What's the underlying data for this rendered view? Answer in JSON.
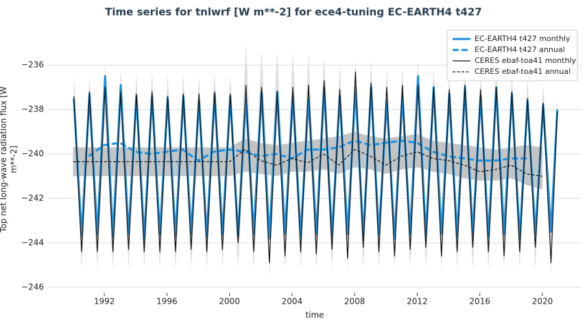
{
  "chart_data": {
    "type": "line",
    "title": "Time series for tnlwrf [W m**-2] for ece4-tuning EC-EARTH4 t427",
    "xlabel": "time",
    "ylabel": "Top net long-wave radiation flux [W m**-2]",
    "xlim": [
      1988.4,
      2022.5
    ],
    "ylim": [
      -246.25,
      -234.3
    ],
    "xticks": [
      1992,
      1996,
      2000,
      2004,
      2008,
      2012,
      2016,
      2020
    ],
    "yticks": [
      {
        "value": -246,
        "label": "−246"
      },
      {
        "value": -244,
        "label": "−244"
      },
      {
        "value": -242,
        "label": "−242"
      },
      {
        "value": -240,
        "label": "−240"
      },
      {
        "value": -238,
        "label": "−238"
      },
      {
        "value": -236,
        "label": "−236"
      }
    ],
    "grid": true,
    "legend": "upper right",
    "bands": [
      {
        "color": "#dedede",
        "x": [
          1990.05,
          1990.55,
          1991.05,
          1991.55,
          1992.05,
          1992.55,
          1993.05,
          1993.55,
          1994.05,
          1994.55,
          1995.05,
          1995.55,
          1996.05,
          1996.55,
          1997.05,
          1997.55,
          1998.05,
          1998.55,
          1999.05,
          1999.55,
          2000.05,
          2000.55,
          2001.05,
          2001.55,
          2002.05,
          2002.55,
          2003.05,
          2003.55,
          2004.05,
          2004.55,
          2005.05,
          2005.55,
          2006.05,
          2006.55,
          2007.05,
          2007.55,
          2008.05,
          2008.55,
          2009.05,
          2009.55,
          2010.05,
          2010.55,
          2011.05,
          2011.55,
          2012.05,
          2012.55,
          2013.05,
          2013.55,
          2014.05,
          2014.55,
          2015.05,
          2015.55,
          2016.05,
          2016.55,
          2017.05,
          2017.55,
          2018.05,
          2018.55,
          2019.05,
          2019.55,
          2020.05,
          2020.55,
          2020.95
        ],
        "upper": [
          -236.4,
          -242.8,
          -236.5,
          -242.8,
          -236.0,
          -242.8,
          -236.2,
          -242.8,
          -236.4,
          -242.8,
          -236.3,
          -242.8,
          -236.4,
          -242.8,
          -236.4,
          -242.8,
          -236.5,
          -242.8,
          -236.3,
          -242.8,
          -236.4,
          -242.8,
          -235.0,
          -242.8,
          -235.3,
          -242.8,
          -235.3,
          -242.8,
          -235.4,
          -242.8,
          -235.5,
          -242.8,
          -235.6,
          -242.8,
          -236.0,
          -242.8,
          -235.8,
          -242.8,
          -235.8,
          -242.8,
          -236.2,
          -242.8,
          -236.1,
          -242.8,
          -235.8,
          -242.8,
          -236.1,
          -242.8,
          -236.3,
          -242.8,
          -236.0,
          -242.8,
          -236.3,
          -242.8,
          -236.1,
          -242.8,
          -236.4,
          -242.8,
          -236.6,
          -242.8,
          -236.9,
          -242.8,
          -237.3
        ],
        "lower": [
          -238.3,
          -245.2,
          -238.3,
          -245.2,
          -238.3,
          -245.2,
          -238.3,
          -245.2,
          -238.3,
          -245.2,
          -238.3,
          -245.2,
          -238.3,
          -245.2,
          -238.3,
          -245.2,
          -238.3,
          -245.2,
          -238.3,
          -245.2,
          -238.3,
          -245.2,
          -238.3,
          -245.2,
          -238.3,
          -245.5,
          -238.3,
          -245.2,
          -238.3,
          -245.2,
          -238.3,
          -245.2,
          -238.3,
          -245.2,
          -238.3,
          -245.2,
          -238.3,
          -245.2,
          -238.3,
          -245.2,
          -238.3,
          -245.2,
          -238.3,
          -245.2,
          -238.3,
          -245.2,
          -238.3,
          -245.2,
          -238.3,
          -245.2,
          -238.3,
          -245.2,
          -238.3,
          -245.2,
          -238.3,
          -245.2,
          -238.3,
          -245.2,
          -238.3,
          -245.2,
          -238.3,
          -245.4,
          -238.8
        ]
      },
      {
        "color": "#c4c4c4",
        "x": [
          1990,
          1991,
          1992,
          1993,
          1994,
          1995,
          1996,
          1997,
          1998,
          1999,
          2000,
          2001,
          2002,
          2003,
          2004,
          2005,
          2006,
          2007,
          2008,
          2009,
          2010,
          2011,
          2012,
          2013,
          2014,
          2015,
          2016,
          2017,
          2018,
          2019,
          2020
        ],
        "upper": [
          -239.7,
          -239.7,
          -239.7,
          -239.7,
          -239.7,
          -239.7,
          -239.7,
          -239.7,
          -239.7,
          -239.7,
          -239.7,
          -239.3,
          -239.5,
          -239.6,
          -239.5,
          -239.4,
          -239.3,
          -239.2,
          -239.0,
          -239.2,
          -239.3,
          -239.2,
          -239.1,
          -239.4,
          -239.5,
          -239.6,
          -239.7,
          -239.8,
          -239.7,
          -239.6,
          -239.7
        ],
        "lower": [
          -241.0,
          -241.0,
          -241.0,
          -241.0,
          -241.0,
          -241.0,
          -241.0,
          -241.0,
          -241.0,
          -241.0,
          -241.0,
          -240.8,
          -240.9,
          -241.0,
          -240.8,
          -240.8,
          -240.7,
          -240.9,
          -240.6,
          -240.7,
          -240.9,
          -240.7,
          -240.6,
          -240.8,
          -240.9,
          -241.1,
          -241.2,
          -241.2,
          -241.1,
          -241.4,
          -241.6
        ]
      }
    ],
    "series": [
      {
        "name": "EC-EARTH4 t427 monthly",
        "color": "#1a8fdd",
        "width": 3,
        "dash": "solid",
        "x": [
          1990.05,
          1990.55,
          1991.05,
          1991.55,
          1992.05,
          1992.55,
          1993.05,
          1993.55,
          1994.05,
          1994.55,
          1995.05,
          1995.55,
          1996.05,
          1996.55,
          1997.05,
          1997.55,
          1998.05,
          1998.55,
          1999.05,
          1999.55,
          2000.05,
          2000.55,
          2001.05,
          2001.55,
          2002.05,
          2002.55,
          2003.05,
          2003.55,
          2004.05,
          2004.55,
          2005.05,
          2005.55,
          2006.05,
          2006.55,
          2007.05,
          2007.55,
          2008.05,
          2008.55,
          2009.05,
          2009.55,
          2010.05,
          2010.55,
          2011.05,
          2011.55,
          2012.05,
          2012.55,
          2013.05,
          2013.55,
          2014.05,
          2014.55,
          2015.05,
          2015.55,
          2016.05,
          2016.55,
          2017.05,
          2017.55,
          2018.05,
          2018.55,
          2019.05,
          2019.55,
          2020.05,
          2020.55,
          2020.95
        ],
        "values": [
          -237.5,
          -243.7,
          -237.3,
          -243.6,
          -236.5,
          -243.7,
          -236.9,
          -243.6,
          -237.4,
          -243.8,
          -237.4,
          -243.6,
          -237.5,
          -243.7,
          -237.4,
          -243.6,
          -237.6,
          -243.7,
          -237.3,
          -243.6,
          -237.4,
          -243.7,
          -237.5,
          -243.6,
          -237.2,
          -243.8,
          -237.2,
          -243.6,
          -237.4,
          -243.7,
          -237.5,
          -243.6,
          -237.0,
          -243.7,
          -237.4,
          -243.6,
          -237.0,
          -243.7,
          -237.0,
          -243.6,
          -237.6,
          -243.8,
          -237.4,
          -243.6,
          -236.5,
          -243.7,
          -237.0,
          -243.6,
          -237.3,
          -243.7,
          -237.0,
          -243.6,
          -237.4,
          -243.7,
          -237.0,
          -243.6,
          -237.3,
          -243.8,
          -237.6,
          -243.6,
          -237.8,
          -243.5,
          -238.0
        ]
      },
      {
        "name": "EC-EARTH4 t427 annual",
        "color": "#1a8fdd",
        "width": 3,
        "dash": "dashed",
        "x": [
          1991,
          1992,
          1993,
          1994,
          1995,
          1996,
          1997,
          1998,
          1999,
          2000,
          2001,
          2002,
          2003,
          2004,
          2005,
          2006,
          2007,
          2008,
          2009,
          2010,
          2011,
          2012,
          2013,
          2014,
          2015,
          2016,
          2017,
          2018,
          2019
        ],
        "values": [
          -240.1,
          -239.6,
          -239.5,
          -239.9,
          -240.0,
          -239.9,
          -239.8,
          -240.3,
          -239.9,
          -239.8,
          -239.9,
          -240.1,
          -240.0,
          -240.2,
          -239.8,
          -239.8,
          -239.7,
          -239.4,
          -239.6,
          -239.5,
          -239.4,
          -239.5,
          -239.9,
          -240.1,
          -240.2,
          -240.3,
          -240.3,
          -240.2,
          -240.2
        ]
      },
      {
        "name": "CERES ebaf-toa41 monthly",
        "color": "#111111",
        "width": 1.2,
        "dash": "solid",
        "x": [
          1990.05,
          1990.55,
          1991.05,
          1991.55,
          1992.05,
          1992.55,
          1993.05,
          1993.55,
          1994.05,
          1994.55,
          1995.05,
          1995.55,
          1996.05,
          1996.55,
          1997.05,
          1997.55,
          1998.05,
          1998.55,
          1999.05,
          1999.55,
          2000.05,
          2000.55,
          2001.05,
          2001.55,
          2002.05,
          2002.55,
          2003.05,
          2003.55,
          2004.05,
          2004.55,
          2005.05,
          2005.55,
          2006.05,
          2006.55,
          2007.05,
          2007.55,
          2008.05,
          2008.55,
          2009.05,
          2009.55,
          2010.05,
          2010.55,
          2011.05,
          2011.55,
          2012.05,
          2012.55,
          2013.05,
          2013.55,
          2014.05,
          2014.55,
          2015.05,
          2015.55,
          2016.05,
          2016.55,
          2017.05,
          2017.55,
          2018.05,
          2018.55,
          2019.05,
          2019.55,
          2020.05,
          2020.55,
          2020.95
        ],
        "values": [
          -237.4,
          -244.4,
          -237.2,
          -244.4,
          -237.0,
          -244.4,
          -237.2,
          -244.3,
          -237.3,
          -244.4,
          -237.2,
          -244.4,
          -237.4,
          -244.4,
          -237.3,
          -244.3,
          -237.3,
          -244.4,
          -237.2,
          -244.3,
          -237.3,
          -244.0,
          -236.9,
          -244.4,
          -237.0,
          -244.9,
          -237.2,
          -244.6,
          -237.0,
          -244.4,
          -236.9,
          -244.5,
          -236.7,
          -244.3,
          -237.1,
          -244.7,
          -236.3,
          -244.2,
          -236.8,
          -244.4,
          -237.0,
          -244.6,
          -236.9,
          -244.3,
          -236.9,
          -244.2,
          -237.0,
          -244.6,
          -237.1,
          -244.4,
          -236.9,
          -244.2,
          -237.1,
          -244.4,
          -237.0,
          -244.6,
          -237.2,
          -244.4,
          -237.5,
          -244.2,
          -237.7,
          -244.9,
          -238.1
        ]
      },
      {
        "name": "CERES ebaf-toa41 annual",
        "color": "#111111",
        "width": 1.2,
        "dash": "dashed",
        "x": [
          1990,
          1991,
          1992,
          1993,
          1994,
          1995,
          1996,
          1997,
          1998,
          1999,
          2000,
          2001,
          2002,
          2003,
          2004,
          2005,
          2006,
          2007,
          2008,
          2009,
          2010,
          2011,
          2012,
          2013,
          2014,
          2015,
          2016,
          2017,
          2018,
          2019,
          2020
        ],
        "values": [
          -240.35,
          -240.35,
          -240.35,
          -240.35,
          -240.35,
          -240.35,
          -240.35,
          -240.35,
          -240.35,
          -240.35,
          -240.35,
          -239.8,
          -240.3,
          -240.5,
          -240.2,
          -240.4,
          -240.0,
          -240.5,
          -239.8,
          -240.1,
          -240.5,
          -240.1,
          -239.9,
          -240.2,
          -240.3,
          -240.5,
          -240.8,
          -240.7,
          -240.5,
          -240.9,
          -241.0
        ]
      }
    ]
  }
}
